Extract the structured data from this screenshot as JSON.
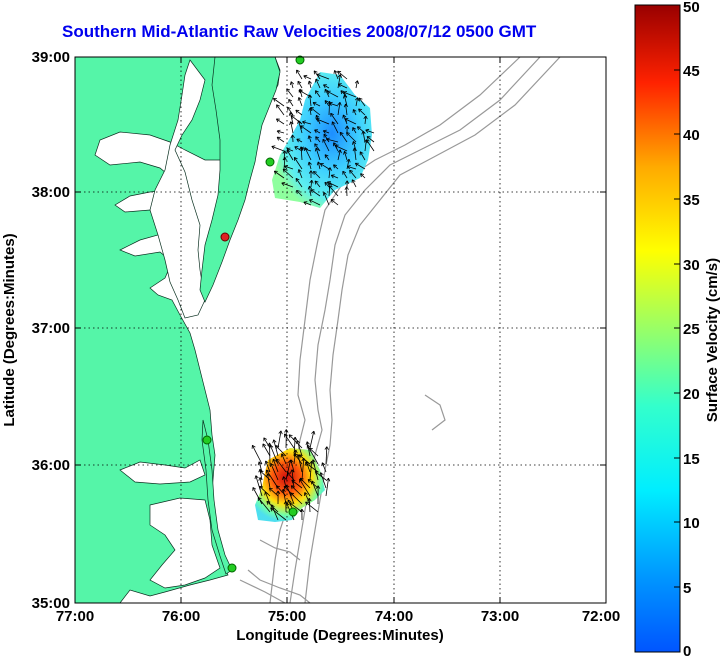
{
  "title": "Southern Mid-Atlantic Raw Velocities 2008/07/12 0500 GMT",
  "x_axis": {
    "label": "Longitude (Degrees:Minutes)",
    "ticks": [
      "77:00",
      "76:00",
      "75:00",
      "74:00",
      "73:00",
      "72:00"
    ]
  },
  "y_axis": {
    "label": "Latitude (Degrees:Minutes)",
    "ticks": [
      "39:00",
      "38:00",
      "37:00",
      "36:00",
      "35:00"
    ]
  },
  "colorbar": {
    "label": "Surface Velocity (cm/s)",
    "ticks": [
      "50",
      "45",
      "40",
      "35",
      "30",
      "25",
      "20",
      "15",
      "10",
      "5",
      "0"
    ],
    "range": [
      0,
      50
    ],
    "colormap": "jet"
  },
  "colors": {
    "land": "#55f5a8",
    "water": "#ffffff",
    "title": "#0000ee",
    "bathymetry": "#999999",
    "gridlines": "#000000"
  },
  "stations": [
    {
      "color": "#22cc22"
    },
    {
      "color": "#22cc22"
    },
    {
      "color": "#dd2222"
    },
    {
      "color": "#22cc22"
    },
    {
      "color": "#22cc22"
    },
    {
      "color": "#22cc22"
    }
  ]
}
